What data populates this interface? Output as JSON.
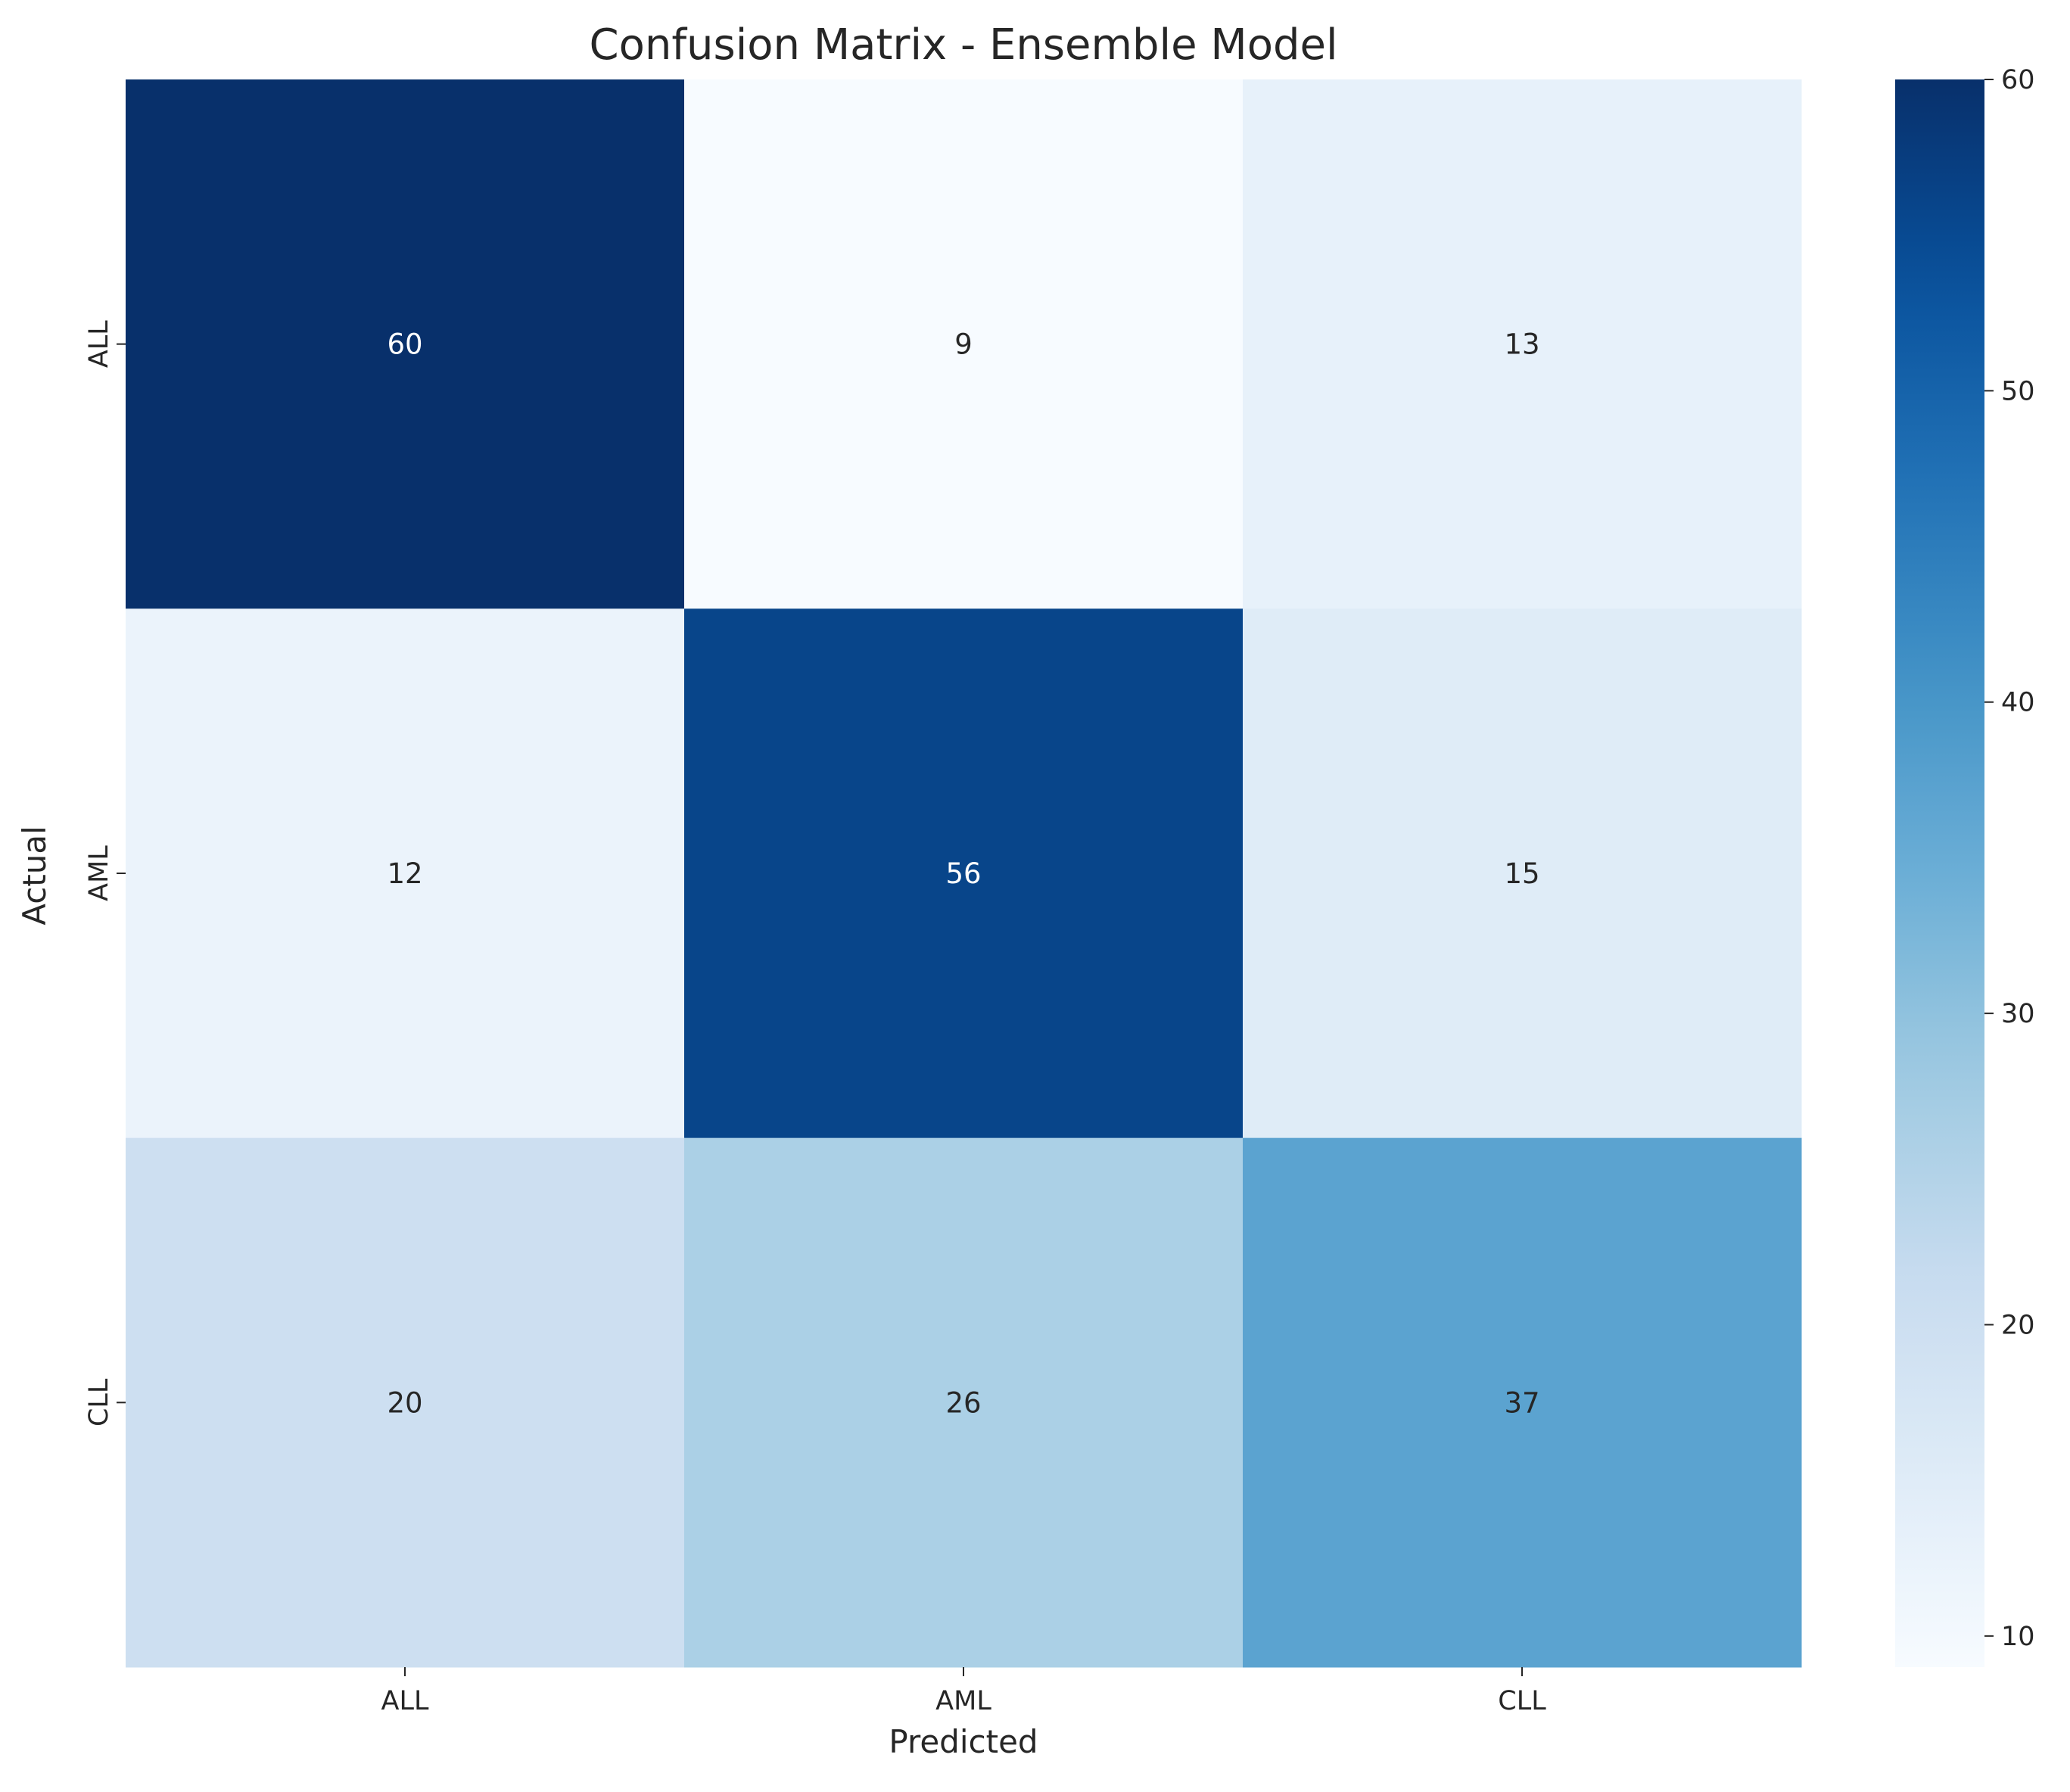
{
  "chart_data": {
    "type": "heatmap",
    "title": "Confusion Matrix - Ensemble Model",
    "xlabel": "Predicted",
    "ylabel": "Actual",
    "x_categories": [
      "ALL",
      "AML",
      "CLL"
    ],
    "y_categories": [
      "ALL",
      "AML",
      "CLL"
    ],
    "values": [
      [
        60,
        9,
        13
      ],
      [
        12,
        56,
        15
      ],
      [
        20,
        26,
        37
      ]
    ],
    "colormap": "Blues",
    "color_range": [
      9,
      60
    ],
    "colorbar_ticks": [
      10,
      20,
      30,
      40,
      50,
      60
    ],
    "grid": false
  }
}
